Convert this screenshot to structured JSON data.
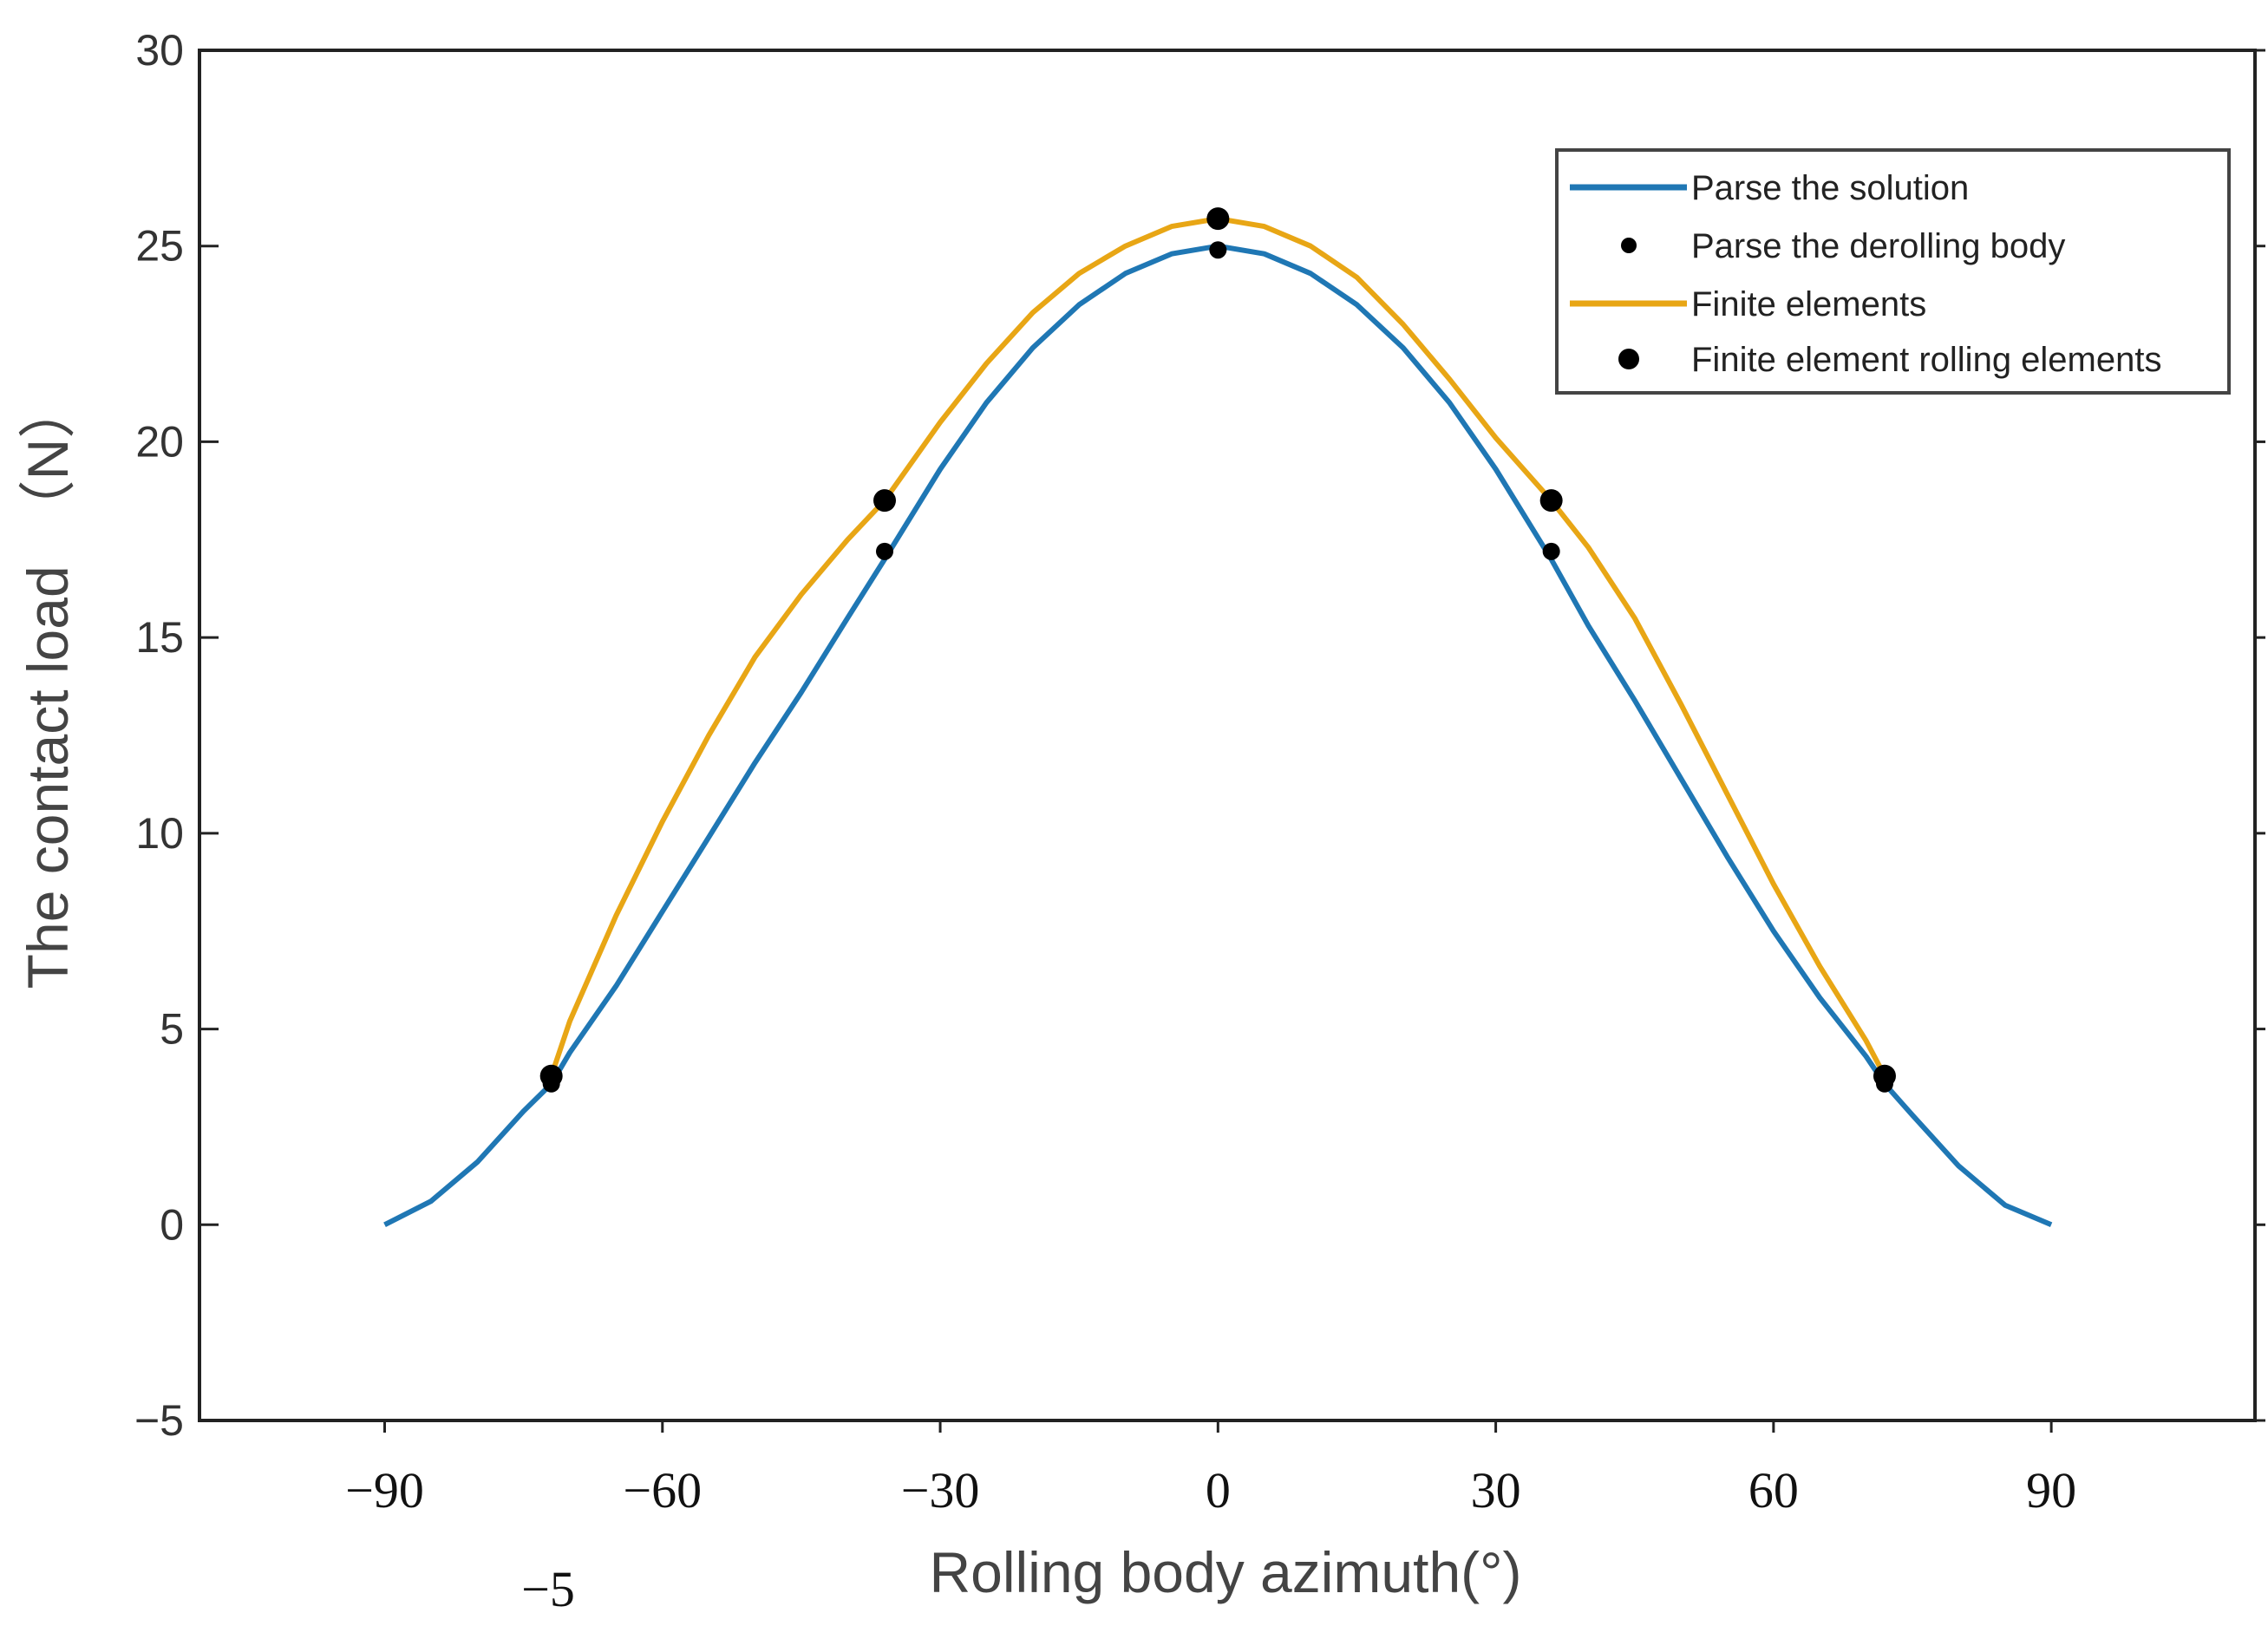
{
  "chart_data": {
    "type": "line",
    "title": "",
    "xlabel": "Rolling body azimuth(°)",
    "ylabel": "The contact load　（N）",
    "xlim": [
      -110,
      112
    ],
    "ylim": [
      -5,
      30
    ],
    "x_ticks": [
      -90,
      -60,
      -30,
      0,
      30,
      60,
      90
    ],
    "x_tick_labels": [
      "−90",
      "−60",
      "−30",
      "0",
      "30",
      "60",
      "90"
    ],
    "y_ticks": [
      -5,
      0,
      5,
      10,
      15,
      20,
      25,
      30
    ],
    "y_tick_labels": [
      "−5",
      "0",
      "5",
      "10",
      "15",
      "20",
      "25",
      "30"
    ],
    "extra_label": "−5",
    "grid": false,
    "legend_position": "top-right",
    "series": [
      {
        "name": "Parse the solution",
        "kind": "line",
        "color": "#1f77b4",
        "x": [
          -90,
          -85,
          -80,
          -75,
          -72,
          -70,
          -65,
          -60,
          -55,
          -50,
          -45,
          -40,
          -36,
          -30,
          -25,
          -20,
          -15,
          -10,
          -5,
          0,
          5,
          10,
          15,
          20,
          25,
          30,
          36,
          40,
          45,
          50,
          55,
          60,
          65,
          70,
          72,
          75,
          80,
          85,
          90
        ],
        "y": [
          0,
          0.6,
          1.6,
          2.9,
          3.6,
          4.4,
          6.1,
          8.0,
          9.9,
          11.8,
          13.6,
          15.5,
          17.0,
          19.3,
          21.0,
          22.4,
          23.5,
          24.3,
          24.8,
          25.0,
          24.8,
          24.3,
          23.5,
          22.4,
          21.0,
          19.3,
          17.0,
          15.3,
          13.4,
          11.4,
          9.4,
          7.5,
          5.8,
          4.3,
          3.6,
          2.8,
          1.5,
          0.5,
          0
        ]
      },
      {
        "name": "Parse the derolling body",
        "kind": "points",
        "color": "#000000",
        "x": [
          -72,
          -36,
          0,
          36,
          72
        ],
        "y": [
          3.6,
          17.2,
          24.9,
          17.2,
          3.6
        ]
      },
      {
        "name": "Finite elements",
        "kind": "line",
        "color": "#e8a615",
        "x": [
          -72,
          -70,
          -65,
          -60,
          -55,
          -50,
          -45,
          -40,
          -36,
          -30,
          -25,
          -20,
          -15,
          -10,
          -5,
          0,
          5,
          10,
          15,
          20,
          25,
          30,
          36,
          40,
          45,
          50,
          55,
          60,
          65,
          70,
          72
        ],
        "y": [
          3.8,
          5.2,
          7.9,
          10.3,
          12.5,
          14.5,
          16.1,
          17.5,
          18.5,
          20.5,
          22.0,
          23.3,
          24.3,
          25.0,
          25.5,
          25.7,
          25.5,
          25.0,
          24.2,
          23.0,
          21.6,
          20.1,
          18.5,
          17.3,
          15.5,
          13.3,
          11.0,
          8.7,
          6.6,
          4.7,
          3.8
        ]
      },
      {
        "name": "Finite element rolling elements",
        "kind": "points",
        "color": "#000000",
        "x": [
          -72,
          -36,
          0,
          36,
          72
        ],
        "y": [
          3.8,
          18.5,
          25.7,
          18.5,
          3.8
        ]
      }
    ]
  }
}
